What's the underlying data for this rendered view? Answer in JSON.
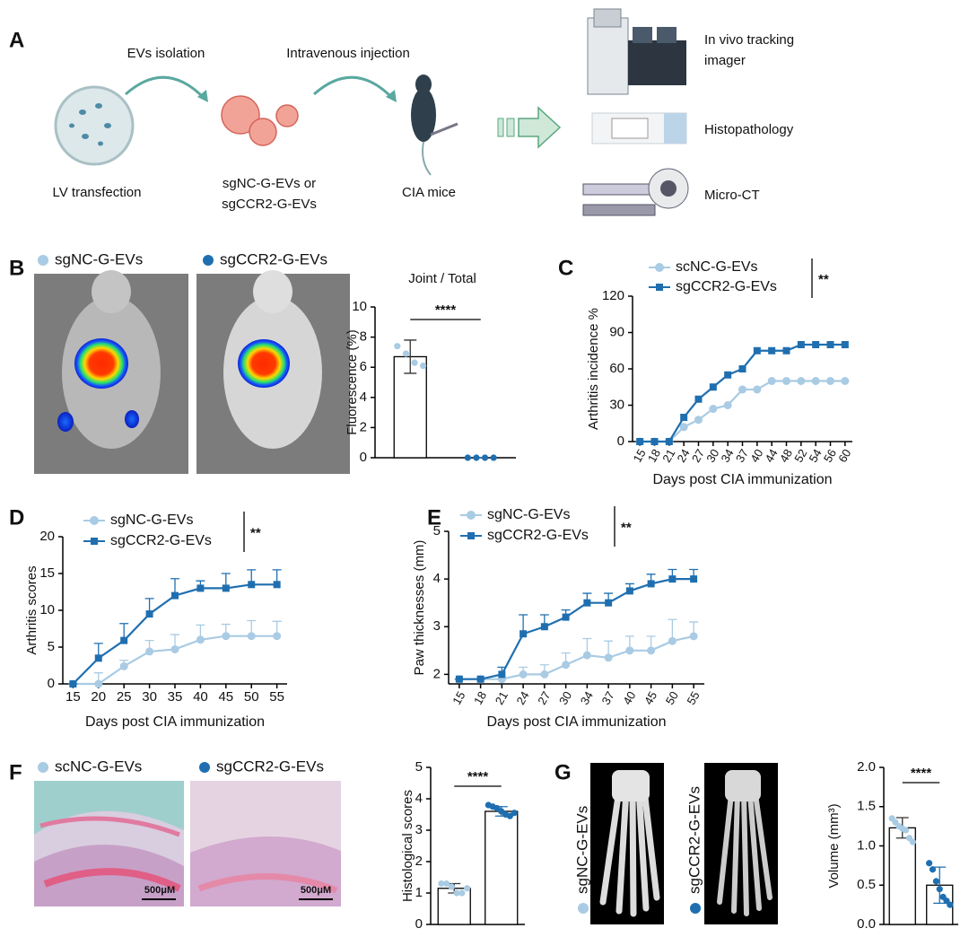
{
  "diagram": {
    "label": "A",
    "arrow_labels": [
      "EVs isolation",
      "Intravenous injection"
    ],
    "steps": [
      "LV transfection",
      "sgNC-G-EVs or",
      "sgCCR2-G-EVs",
      "CIA mice"
    ],
    "readouts": [
      "In vivo tracking",
      "imager",
      "Histopathology",
      "Micro-CT"
    ]
  },
  "chart_data": [
    {
      "type": "bar",
      "panel": "B",
      "title": "Joint / Total",
      "y_label": "Fluorescence (%)",
      "ylim": [
        0,
        10
      ],
      "yticks": [
        0,
        2,
        4,
        6,
        8,
        10
      ],
      "significance": "****",
      "series": [
        {
          "name": "sgNC-G-EVs",
          "color": "#a9cbe3",
          "values": [
            6.7
          ],
          "errors": [
            1.1
          ],
          "points": [
            7.4,
            6.9,
            6.3,
            6.1
          ]
        },
        {
          "name": "sgCCR2-G-EVs",
          "color": "#1f6fb0",
          "values": [
            0
          ],
          "errors": [
            0
          ],
          "points": [
            0,
            0,
            0,
            0
          ]
        }
      ]
    },
    {
      "type": "line",
      "panel": "C",
      "x_label": "Days post CIA immunization",
      "y_label": "Arthritis incidence %",
      "ylim": [
        0,
        120
      ],
      "yticks": [
        0,
        30,
        60,
        90,
        120
      ],
      "significance": "**",
      "categories": [
        "15",
        "18",
        "21",
        "24",
        "27",
        "30",
        "34",
        "37",
        "40",
        "44",
        "48",
        "52",
        "54",
        "56",
        "60"
      ],
      "series": [
        {
          "name": "scNC-G-EVs",
          "color": "#a9cbe3",
          "marker": "circle",
          "values": [
            0,
            0,
            0,
            12,
            18,
            27,
            30,
            43,
            43,
            50,
            50,
            50,
            50,
            50,
            50
          ]
        },
        {
          "name": "sgCCR2-G-EVs",
          "color": "#1f6fb0",
          "marker": "square",
          "values": [
            0,
            0,
            0,
            20,
            35,
            45,
            55,
            60,
            75,
            75,
            75,
            80,
            80,
            80,
            80
          ]
        }
      ]
    },
    {
      "type": "line",
      "panel": "D",
      "x_label": "Days post CIA immunization",
      "y_label": "Arthritis scores",
      "ylim": [
        0,
        20
      ],
      "yticks": [
        0,
        5,
        10,
        15,
        20
      ],
      "xlim": [
        13,
        57
      ],
      "xticks": [
        15,
        20,
        25,
        30,
        35,
        40,
        45,
        50,
        55
      ],
      "significance": "**",
      "x": [
        15,
        20,
        25,
        30,
        35,
        40,
        45,
        50,
        55
      ],
      "series": [
        {
          "name": "sgNC-G-EVs",
          "color": "#a9cbe3",
          "marker": "circle",
          "values": [
            0,
            0,
            2.4,
            4.4,
            4.7,
            6,
            6.5,
            6.5,
            6.5
          ],
          "errors": [
            0,
            1.5,
            0.8,
            1.5,
            2,
            2,
            1.6,
            2.1,
            2
          ]
        },
        {
          "name": "sgCCR2-G-EVs",
          "color": "#1f6fb0",
          "marker": "square",
          "values": [
            0,
            3.5,
            5.9,
            9.5,
            12,
            13,
            13,
            13.5,
            13.5
          ],
          "errors": [
            0,
            2,
            2.3,
            2.1,
            2.3,
            1,
            2,
            2,
            2
          ]
        }
      ]
    },
    {
      "type": "line",
      "panel": "E",
      "x_label": "Days post CIA immunization",
      "y_label": "Paw thicknesses (mm)",
      "ylim": [
        1.8,
        5
      ],
      "yticks": [
        2,
        3,
        4,
        5
      ],
      "significance": "**",
      "categories": [
        "15",
        "18",
        "21",
        "24",
        "27",
        "30",
        "34",
        "37",
        "40",
        "45",
        "50",
        "55"
      ],
      "series": [
        {
          "name": "sgNC-G-EVs",
          "color": "#a9cbe3",
          "marker": "circle",
          "values": [
            1.9,
            1.9,
            1.9,
            2.0,
            2.0,
            2.2,
            2.4,
            2.35,
            2.5,
            2.5,
            2.7,
            2.8
          ],
          "errors": [
            0,
            0,
            0,
            0.15,
            0.2,
            0.25,
            0.35,
            0.35,
            0.3,
            0.3,
            0.45,
            0.3
          ]
        },
        {
          "name": "sgCCR2-G-EVs",
          "color": "#1f6fb0",
          "marker": "square",
          "values": [
            1.9,
            1.9,
            2.0,
            2.85,
            3.0,
            3.2,
            3.5,
            3.5,
            3.75,
            3.9,
            4.0,
            4.0
          ],
          "errors": [
            0,
            0,
            0.15,
            0.4,
            0.25,
            0.15,
            0.2,
            0.2,
            0.15,
            0.2,
            0.2,
            0.2
          ]
        }
      ]
    },
    {
      "type": "bar",
      "panel": "F",
      "y_label": "Histological scores",
      "ylim": [
        0,
        5
      ],
      "yticks": [
        0,
        1,
        2,
        3,
        4,
        5
      ],
      "significance": "****",
      "scale_bar": "500μM",
      "series": [
        {
          "name": "scNC-G-EVs",
          "color": "#a9cbe3",
          "values": [
            1.15
          ],
          "errors": [
            0.15
          ],
          "points": [
            1.3,
            1.3,
            1.2,
            1.0,
            1.0,
            1.15
          ]
        },
        {
          "name": "sgCCR2-G-EVs",
          "color": "#1f6fb0",
          "values": [
            3.6
          ],
          "errors": [
            0.15
          ],
          "points": [
            3.8,
            3.75,
            3.7,
            3.6,
            3.5,
            3.45,
            3.55
          ]
        }
      ]
    },
    {
      "type": "bar",
      "panel": "G",
      "y_label": "Volume (mm³)",
      "ylim": [
        0,
        2
      ],
      "yticks": [
        {
          "value": 0,
          "label": "0.0"
        },
        {
          "value": 0.5,
          "label": "0.5"
        },
        {
          "value": 1,
          "label": "1.0"
        },
        {
          "value": 1.5,
          "label": "1.5"
        },
        {
          "value": 2,
          "label": "2.0"
        }
      ],
      "significance": "****",
      "series": [
        {
          "name": "sgNC-G-EVs",
          "color": "#a9cbe3",
          "values": [
            1.23
          ],
          "errors": [
            0.13
          ],
          "points": [
            1.35,
            1.3,
            1.25,
            1.22,
            1.2,
            1.1,
            1.05
          ]
        },
        {
          "name": "sgCCR2-G-EVs",
          "color": "#1f6fb0",
          "values": [
            0.5
          ],
          "errors": [
            0.23
          ],
          "points": [
            0.78,
            0.7,
            0.55,
            0.45,
            0.35,
            0.3,
            0.25
          ]
        }
      ]
    }
  ]
}
